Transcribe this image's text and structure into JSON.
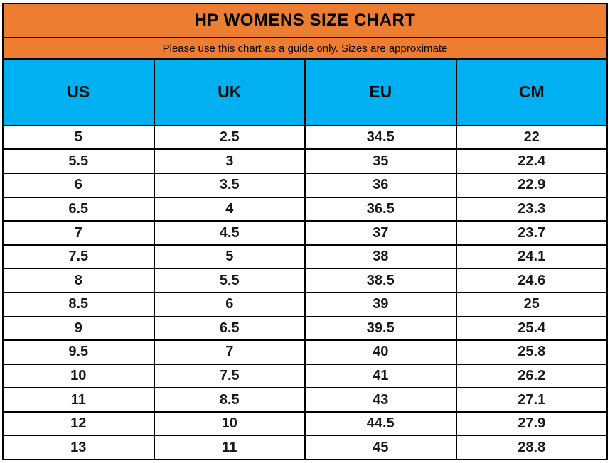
{
  "title": "HP WOMENS SIZE CHART",
  "subtitle": "Please use this chart as a guide only. Sizes are approximate",
  "colors": {
    "title_bg": "#ED7D31",
    "header_bg": "#00B0F0",
    "grid": "#000000",
    "text": "#1a1a1a"
  },
  "chart_data": {
    "type": "table",
    "title": "HP WOMENS SIZE CHART",
    "subtitle": "Please use this chart as a guide only. Sizes are approximate",
    "columns": [
      "US",
      "UK",
      "EU",
      "CM"
    ],
    "rows": [
      [
        "5",
        "2.5",
        "34.5",
        "22"
      ],
      [
        "5.5",
        "3",
        "35",
        "22.4"
      ],
      [
        "6",
        "3.5",
        "36",
        "22.9"
      ],
      [
        "6.5",
        "4",
        "36.5",
        "23.3"
      ],
      [
        "7",
        "4.5",
        "37",
        "23.7"
      ],
      [
        "7.5",
        "5",
        "38",
        "24.1"
      ],
      [
        "8",
        "5.5",
        "38.5",
        "24.6"
      ],
      [
        "8.5",
        "6",
        "39",
        "25"
      ],
      [
        "9",
        "6.5",
        "39.5",
        "25.4"
      ],
      [
        "9.5",
        "7",
        "40",
        "25.8"
      ],
      [
        "10",
        "7.5",
        "41",
        "26.2"
      ],
      [
        "11",
        "8.5",
        "43",
        "27.1"
      ],
      [
        "12",
        "10",
        "44.5",
        "27.9"
      ],
      [
        "13",
        "11",
        "45",
        "28.8"
      ]
    ],
    "layout": {
      "grid": true,
      "column_count": 4,
      "row_count": 14
    }
  }
}
